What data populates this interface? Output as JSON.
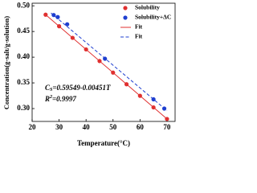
{
  "chart_data": {
    "type": "scatter",
    "xlabel": "Temperature(°C)",
    "ylabel": "Concentration(g-salt/g-solution)",
    "xlim": [
      20,
      73
    ],
    "xticks": [
      20,
      30,
      40,
      50,
      60,
      70
    ],
    "ylim": [
      0.275,
      0.505
    ],
    "yticks": [
      {
        "value": 0.3,
        "label": "0.30"
      },
      {
        "value": 0.35,
        "label": "0.35"
      },
      {
        "value": 0.4,
        "label": "0.40"
      },
      0.45,
      {
        "value": 0.5,
        "label": "0.50"
      }
    ],
    "legend": "upper right",
    "series": [
      {
        "name": "Solubility",
        "color": "#e03030",
        "style": "points",
        "x": [
          25,
          30,
          35,
          40,
          45,
          50,
          55,
          60,
          65,
          70
        ],
        "values": [
          0.4827,
          0.4602,
          0.4376,
          0.4151,
          0.3925,
          0.37,
          0.3474,
          0.3249,
          0.3023,
          0.2798
        ]
      },
      {
        "name": "Solubility+ΔC",
        "color": "#1f3fd0",
        "style": "points",
        "x": [
          28,
          29.5,
          33,
          47,
          65,
          69
        ],
        "values": [
          0.482,
          0.478,
          0.464,
          0.397,
          0.318,
          0.3
        ]
      },
      {
        "name": "Fit",
        "color": "#e03030",
        "style": "line",
        "x": [
          25,
          70
        ],
        "values": [
          0.4827,
          0.2798
        ]
      },
      {
        "name": "Fit",
        "color": "#1f3fd0",
        "style": "dashed",
        "x": [
          27,
          70
        ],
        "values": [
          0.486,
          0.296
        ]
      }
    ],
    "annotations": [
      [
        "C",
        "S",
        "=0.59549-0.00451T"
      ],
      [
        "R",
        "2",
        "=0.9997"
      ]
    ]
  }
}
